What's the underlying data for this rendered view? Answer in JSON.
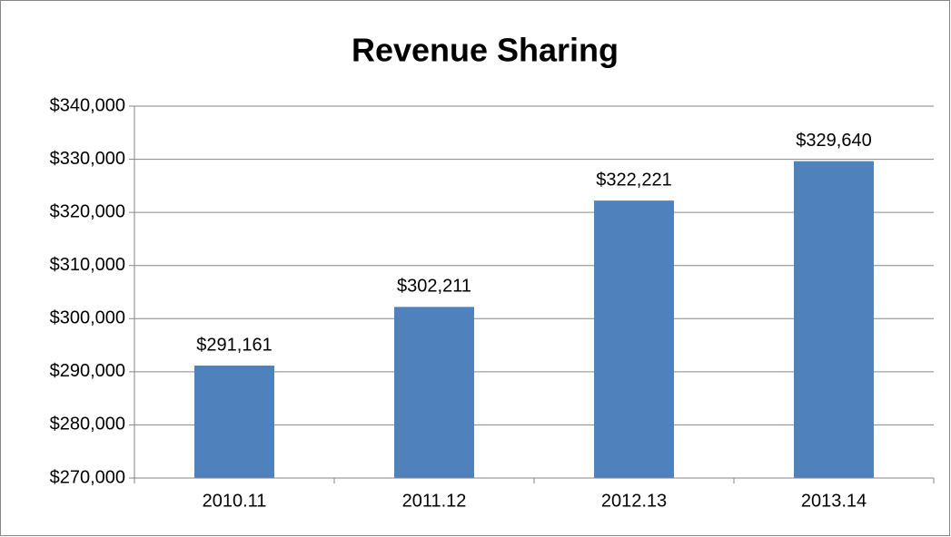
{
  "chart_data": {
    "type": "bar",
    "title": "Revenue Sharing",
    "categories": [
      "2010.11",
      "2011.12",
      "2012.13",
      "2013.14"
    ],
    "values": [
      291161,
      302211,
      322221,
      329640
    ],
    "value_labels": [
      "$291,161",
      "$302,211",
      "$322,221",
      "$329,640"
    ],
    "color": "#4f81bd",
    "ylim": [
      270000,
      340000
    ],
    "yticks": [
      {
        "value": 270000,
        "label": "$270,000"
      },
      {
        "value": 280000,
        "label": "$280,000"
      },
      {
        "value": 290000,
        "label": "$290,000"
      },
      {
        "value": 300000,
        "label": "$300,000"
      },
      {
        "value": 310000,
        "label": "$310,000"
      },
      {
        "value": 320000,
        "label": "$320,000"
      },
      {
        "value": 330000,
        "label": "$330,000"
      },
      {
        "value": 340000,
        "label": "$340,000"
      }
    ],
    "grid": true
  }
}
